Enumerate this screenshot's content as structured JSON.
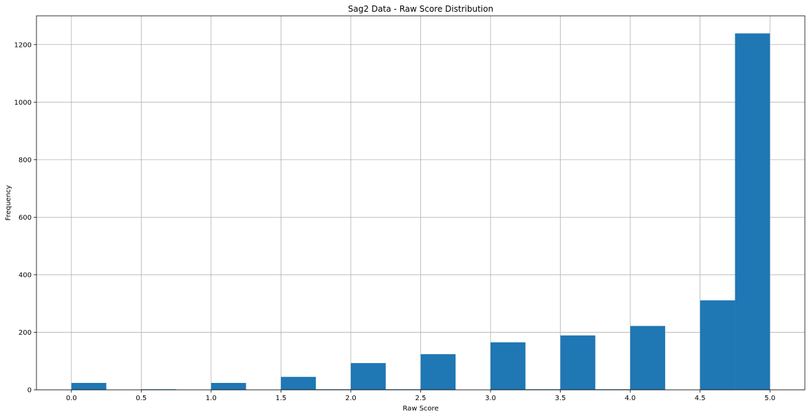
{
  "chart_data": {
    "type": "bar",
    "title": "Sag2 Data - Raw Score Distribution",
    "xlabel": "Raw Score",
    "ylabel": "Frequency",
    "xlim": [
      -0.25,
      5.25
    ],
    "ylim": [
      0,
      1300
    ],
    "grid": true,
    "bar_color": "#1f77b4",
    "x_ticks": [
      "0.0",
      "0.5",
      "1.0",
      "1.5",
      "2.0",
      "2.5",
      "3.0",
      "3.5",
      "4.0",
      "4.5",
      "5.0"
    ],
    "y_ticks": [
      "0",
      "200",
      "400",
      "600",
      "800",
      "1000",
      "1200"
    ],
    "bins": [
      {
        "start": 0.0,
        "end": 0.25,
        "value": 24
      },
      {
        "start": 0.25,
        "end": 0.5,
        "value": 0
      },
      {
        "start": 0.5,
        "end": 0.75,
        "value": 2
      },
      {
        "start": 0.75,
        "end": 1.0,
        "value": 0
      },
      {
        "start": 1.0,
        "end": 1.25,
        "value": 24
      },
      {
        "start": 1.25,
        "end": 1.5,
        "value": 0
      },
      {
        "start": 1.5,
        "end": 1.75,
        "value": 45
      },
      {
        "start": 1.75,
        "end": 2.0,
        "value": 2
      },
      {
        "start": 2.0,
        "end": 2.25,
        "value": 93
      },
      {
        "start": 2.25,
        "end": 2.5,
        "value": 2
      },
      {
        "start": 2.5,
        "end": 2.75,
        "value": 124
      },
      {
        "start": 2.75,
        "end": 3.0,
        "value": 0
      },
      {
        "start": 3.0,
        "end": 3.25,
        "value": 165
      },
      {
        "start": 3.25,
        "end": 3.5,
        "value": 2
      },
      {
        "start": 3.5,
        "end": 3.75,
        "value": 189
      },
      {
        "start": 3.75,
        "end": 4.0,
        "value": 2
      },
      {
        "start": 4.0,
        "end": 4.25,
        "value": 222
      },
      {
        "start": 4.25,
        "end": 4.5,
        "value": 0
      },
      {
        "start": 4.5,
        "end": 4.75,
        "value": 311
      },
      {
        "start": 4.75,
        "end": 5.0,
        "value": 1239
      }
    ]
  }
}
